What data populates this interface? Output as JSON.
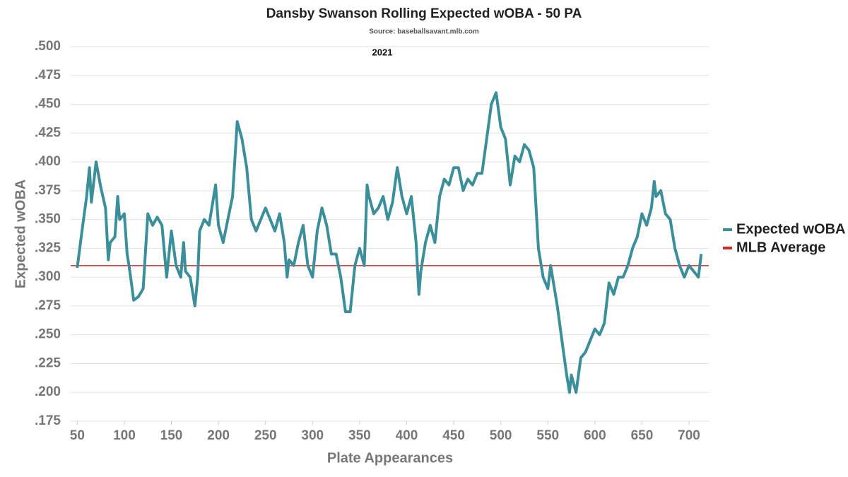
{
  "chart_data": {
    "type": "line",
    "title": "Dansby Swanson Rolling Expected wOBA - 50 PA",
    "subtitle": "Source: baseballsavant.mlb.com",
    "annotation": "2021",
    "x_label": "Plate Appearances",
    "y_label": "Expected wOBA",
    "x": [
      50,
      55,
      60,
      63,
      65,
      70,
      75,
      80,
      83,
      85,
      90,
      93,
      95,
      100,
      103,
      105,
      110,
      115,
      120,
      125,
      130,
      135,
      140,
      145,
      150,
      155,
      160,
      163,
      165,
      170,
      175,
      178,
      180,
      185,
      190,
      195,
      197,
      200,
      205,
      210,
      215,
      220,
      225,
      230,
      235,
      240,
      245,
      250,
      255,
      260,
      265,
      270,
      273,
      275,
      280,
      285,
      290,
      295,
      300,
      305,
      310,
      315,
      320,
      325,
      330,
      335,
      340,
      345,
      350,
      355,
      358,
      360,
      365,
      370,
      375,
      380,
      385,
      390,
      395,
      400,
      405,
      410,
      413,
      415,
      420,
      425,
      430,
      435,
      440,
      445,
      450,
      455,
      460,
      465,
      470,
      475,
      480,
      485,
      490,
      495,
      500,
      505,
      510,
      515,
      520,
      525,
      530,
      535,
      540,
      545,
      550,
      553,
      555,
      560,
      565,
      570,
      573,
      575,
      580,
      585,
      590,
      595,
      600,
      605,
      610,
      615,
      620,
      625,
      630,
      635,
      640,
      645,
      650,
      655,
      660,
      663,
      665,
      670,
      675,
      680,
      685,
      690,
      695,
      700,
      705,
      710,
      713
    ],
    "series": [
      {
        "name": "Expected wOBA",
        "color": "#3a8f9a",
        "values": [
          0.308,
          0.34,
          0.37,
          0.395,
          0.365,
          0.4,
          0.378,
          0.36,
          0.315,
          0.33,
          0.335,
          0.37,
          0.35,
          0.355,
          0.32,
          0.31,
          0.28,
          0.283,
          0.29,
          0.355,
          0.345,
          0.352,
          0.345,
          0.3,
          0.34,
          0.31,
          0.3,
          0.33,
          0.305,
          0.3,
          0.275,
          0.3,
          0.34,
          0.35,
          0.345,
          0.37,
          0.38,
          0.345,
          0.33,
          0.35,
          0.37,
          0.435,
          0.42,
          0.395,
          0.35,
          0.34,
          0.35,
          0.36,
          0.35,
          0.34,
          0.355,
          0.33,
          0.3,
          0.315,
          0.31,
          0.33,
          0.345,
          0.31,
          0.3,
          0.34,
          0.36,
          0.345,
          0.32,
          0.32,
          0.3,
          0.27,
          0.27,
          0.31,
          0.325,
          0.31,
          0.38,
          0.37,
          0.355,
          0.36,
          0.37,
          0.35,
          0.365,
          0.395,
          0.37,
          0.355,
          0.37,
          0.33,
          0.285,
          0.305,
          0.33,
          0.345,
          0.33,
          0.37,
          0.385,
          0.38,
          0.395,
          0.395,
          0.375,
          0.385,
          0.38,
          0.39,
          0.39,
          0.42,
          0.45,
          0.46,
          0.43,
          0.42,
          0.38,
          0.405,
          0.4,
          0.415,
          0.41,
          0.395,
          0.325,
          0.3,
          0.29,
          0.31,
          0.3,
          0.275,
          0.245,
          0.215,
          0.2,
          0.215,
          0.2,
          0.23,
          0.235,
          0.245,
          0.255,
          0.25,
          0.26,
          0.295,
          0.285,
          0.3,
          0.3,
          0.31,
          0.325,
          0.335,
          0.355,
          0.345,
          0.36,
          0.383,
          0.37,
          0.375,
          0.355,
          0.35,
          0.325,
          0.31,
          0.3,
          0.31,
          0.305,
          0.3,
          0.32
        ]
      }
    ],
    "reference_lines": [
      {
        "name": "MLB Average",
        "value": 0.31,
        "color": "#d62728"
      }
    ],
    "xlim": [
      43,
      721
    ],
    "xticks": [
      50,
      100,
      150,
      200,
      250,
      300,
      350,
      400,
      450,
      500,
      550,
      600,
      650,
      700
    ],
    "ylim": [
      0.175,
      0.5
    ],
    "yticks": [
      {
        "value": 0.175,
        "label": ".175"
      },
      {
        "value": 0.2,
        "label": ".200"
      },
      {
        "value": 0.225,
        "label": ".225"
      },
      {
        "value": 0.25,
        "label": ".250"
      },
      {
        "value": 0.275,
        "label": ".275"
      },
      {
        "value": 0.3,
        "label": ".300"
      },
      {
        "value": 0.325,
        "label": ".325"
      },
      {
        "value": 0.35,
        "label": ".350"
      },
      {
        "value": 0.375,
        "label": ".375"
      },
      {
        "value": 0.4,
        "label": ".400"
      },
      {
        "value": 0.425,
        "label": ".425"
      },
      {
        "value": 0.45,
        "label": ".450"
      },
      {
        "value": 0.475,
        "label": ".475"
      },
      {
        "value": 0.5,
        "label": ".500"
      }
    ],
    "grid": true,
    "legend": "right"
  }
}
